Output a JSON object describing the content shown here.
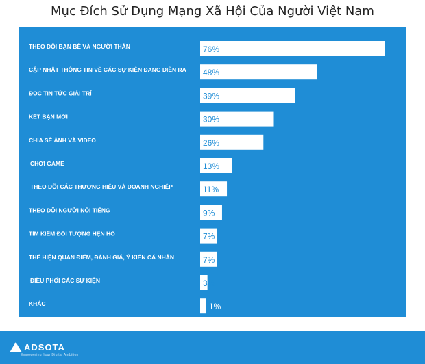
{
  "colors": {
    "panel": "#1f8dd6",
    "footer": "#1f8dd6",
    "bar": "#ffffff",
    "value_text": "#1f8dd6",
    "label_text": "#ffffff"
  },
  "footer": {
    "logo_text": "ADSOTA",
    "tagline": "Empowering Your Digital Ambition"
  },
  "chart_data": {
    "type": "bar",
    "orientation": "horizontal",
    "title": "Mục Đích Sử Dụng Mạng Xã Hội Của Người Việt Nam",
    "xlim": [
      0,
      80
    ],
    "grid": false,
    "categories": [
      "THEO DÕI BẠN BÈ VÀ NGƯỜI THÂN",
      "CẬP NHẬT THÔNG TIN VỀ CÁC SỰ KIỆN ĐANG DIỄN RA",
      "ĐỌC TIN TỨC GIẢI TRÍ",
      "KẾT BẠN MỚI",
      "CHIA SẺ ẢNH VÀ VIDEO",
      "CHƠI GAME",
      "THEO DÕI CÁC THƯƠNG HIỆU VÀ DOANH NGHIỆP",
      "THEO DÕI NGƯỜI NỔI TIẾNG",
      "TÌM KIẾM ĐỐI TƯỢNG HẸN HÒ",
      "THỂ HIỆN QUAN ĐIỂM, ĐÁNH GIÁ, Ý KIẾN CÁ NHÂN",
      "ĐIỀU PHỐI CÁC SỰ KIỆN",
      "KHÁC"
    ],
    "values": [
      76,
      48,
      39,
      30,
      26,
      13,
      11,
      9,
      7,
      7,
      3,
      1
    ],
    "value_labels": [
      "76%",
      "48%",
      "39%",
      "30%",
      "26%",
      "13%",
      "11%",
      "9%",
      "7%",
      "7%",
      "3%",
      "1%"
    ]
  }
}
